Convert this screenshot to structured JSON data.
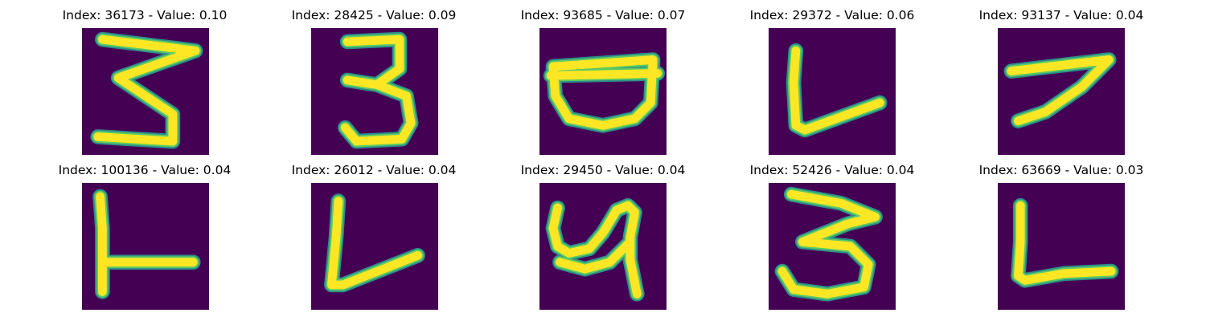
{
  "colors": {
    "background": "#440154",
    "stroke_outer": "#2c8e8a",
    "stroke_mid": "#5ec962",
    "stroke_core": "#fde725"
  },
  "panels": [
    {
      "title": "Index: 36173 - Value: 0.10",
      "glyph": "digit-three-zigzag-icon"
    },
    {
      "title": "Index: 28425 - Value: 0.09",
      "glyph": "digit-three-icon"
    },
    {
      "title": "Index: 93685 - Value: 0.07",
      "glyph": "bowl-shape-icon"
    },
    {
      "title": "Index: 29372 - Value: 0.06",
      "glyph": "letter-l-slanted-icon"
    },
    {
      "title": "Index: 93137 - Value: 0.04",
      "glyph": "digit-seven-icon"
    },
    {
      "title": "Index: 100136 - Value: 0.04",
      "glyph": "letter-t-sideways-icon"
    },
    {
      "title": "Index: 26012 - Value: 0.04",
      "glyph": "letter-l-slanted-icon"
    },
    {
      "title": "Index: 29450 - Value: 0.04",
      "glyph": "letter-y-icon"
    },
    {
      "title": "Index: 52426 - Value: 0.04",
      "glyph": "digit-three-icon"
    },
    {
      "title": "Index: 63669 - Value: 0.03",
      "glyph": "letter-l-icon"
    }
  ]
}
